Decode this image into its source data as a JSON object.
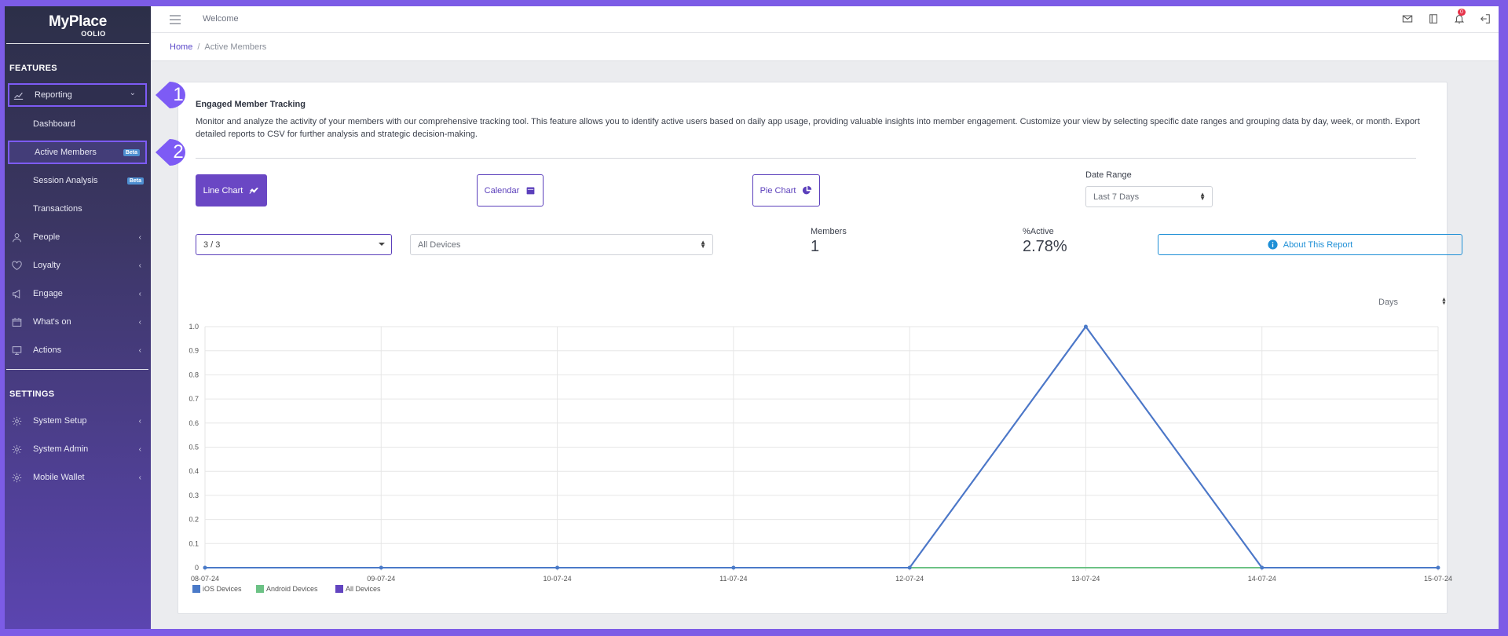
{
  "app": {
    "logo_main": "MyPlace",
    "logo_sub": "OOLIO"
  },
  "sidebar": {
    "features_title": "FEATURES",
    "settings_title": "SETTINGS",
    "reporting": {
      "label": "Reporting",
      "icon": "chart-line-icon",
      "chevron": "⌄"
    },
    "subitems": [
      {
        "label": "Dashboard"
      },
      {
        "label": "Active Members",
        "badge": "Beta"
      },
      {
        "label": "Session Analysis",
        "badge": "Beta"
      },
      {
        "label": "Transactions"
      }
    ],
    "items": [
      {
        "label": "People",
        "icon": "user-icon"
      },
      {
        "label": "Loyalty",
        "icon": "heart-icon"
      },
      {
        "label": "Engage",
        "icon": "megaphone-icon"
      },
      {
        "label": "What's on",
        "icon": "calendar-icon"
      },
      {
        "label": "Actions",
        "icon": "monitor-icon"
      }
    ],
    "settings_items": [
      {
        "label": "System Setup",
        "icon": "gear-icon"
      },
      {
        "label": "System Admin",
        "icon": "gear-icon"
      },
      {
        "label": "Mobile Wallet",
        "icon": "gear-icon"
      }
    ],
    "chevron_left": "‹",
    "callouts": [
      "1",
      "2"
    ]
  },
  "topbar": {
    "welcome": "Welcome",
    "notification_count": "0"
  },
  "breadcrumb": {
    "home": "Home",
    "separator": "/",
    "current": "Active Members"
  },
  "card": {
    "title": "Engaged Member Tracking",
    "description": "Monitor and analyze the activity of your members with our comprehensive tracking tool. This feature allows you to identify active users based on daily app usage, providing valuable insights into member engagement. Customize your view by selecting specific date ranges and grouping data by day, week, or month. Export detailed reports to CSV for further analysis and strategic decision-making.",
    "buttons": {
      "line_chart": "Line Chart",
      "calendar": "Calendar",
      "pie_chart": "Pie Chart",
      "about": "About This Report"
    },
    "date_range_label": "Date Range",
    "date_range_value": "Last 7 Days",
    "venue_select_value": "3 / 3",
    "device_select_value": "All Devices",
    "members_label": "Members",
    "members_value": "1",
    "active_label": "%Active",
    "active_value": "2.78%",
    "grouping_value": "Days"
  },
  "colors": {
    "ios": "#4a7ac8",
    "android": "#6cc285",
    "all": "#6244c0",
    "accent": "#6a47c4",
    "about": "#1e8fd6"
  },
  "chart_data": {
    "type": "line",
    "x": [
      "08-07-24",
      "09-07-24",
      "10-07-24",
      "11-07-24",
      "12-07-24",
      "13-07-24",
      "14-07-24",
      "15-07-24"
    ],
    "ylim": [
      0,
      1.0
    ],
    "yticks": [
      "0",
      "0.1",
      "0.2",
      "0.3",
      "0.4",
      "0.5",
      "0.6",
      "0.7",
      "0.8",
      "0.9",
      "1.0"
    ],
    "series": [
      {
        "name": "iOS Devices",
        "color": "#4a7ac8",
        "values": [
          0,
          0,
          0,
          0,
          0,
          1,
          0,
          0
        ]
      },
      {
        "name": "Android Devices",
        "color": "#6cc285",
        "values": [
          0,
          0,
          0,
          0,
          0,
          0,
          0,
          0
        ]
      },
      {
        "name": "All Devices",
        "color": "#6244c0",
        "values": [
          0,
          0,
          0,
          0,
          0,
          1,
          0,
          0
        ]
      }
    ],
    "grid": true,
    "legend": "bottom-left"
  }
}
